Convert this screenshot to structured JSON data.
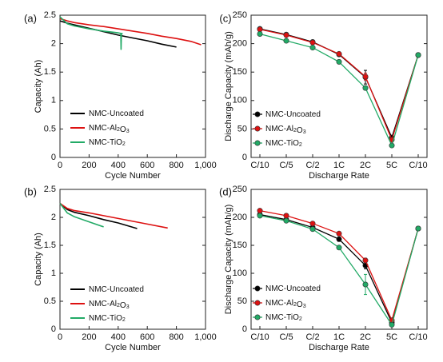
{
  "chart_data": [
    {
      "panel_label": "(a)",
      "type": "line",
      "xlabel": "Cycle Number",
      "ylabel": "Capacity (Ah)",
      "xlim": [
        0,
        1000
      ],
      "ylim": [
        0,
        2.5
      ],
      "x_ticks": [
        "0",
        "200",
        "400",
        "600",
        "800",
        "1,000"
      ],
      "x_tick_values": [
        0,
        200,
        400,
        600,
        800,
        1000
      ],
      "y_ticks": [
        "0",
        "0.5",
        "1",
        "1.5",
        "2",
        "2.5"
      ],
      "y_tick_values": [
        0,
        0.5,
        1,
        1.5,
        2,
        2.5
      ],
      "legend_position": "bottom-left",
      "series": [
        {
          "name": "NMC-Uncoated",
          "color": "#000000",
          "x": [
            0,
            50,
            100,
            200,
            300,
            400,
            500,
            600,
            700,
            800
          ],
          "y": [
            2.4,
            2.36,
            2.33,
            2.27,
            2.21,
            2.15,
            2.1,
            2.05,
            1.99,
            1.94
          ]
        },
        {
          "name": "NMC-Al₂O₃",
          "color": "#dd1111",
          "x": [
            0,
            50,
            100,
            200,
            300,
            400,
            500,
            600,
            700,
            800,
            900,
            970
          ],
          "y": [
            2.44,
            2.4,
            2.37,
            2.33,
            2.3,
            2.26,
            2.22,
            2.18,
            2.13,
            2.09,
            2.04,
            1.98
          ]
        },
        {
          "name": "NMC-TiO₂",
          "color": "#22aa66",
          "x": [
            0,
            50,
            100,
            200,
            300,
            400,
            418,
            420,
            422,
            424,
            430
          ],
          "y": [
            2.47,
            2.35,
            2.31,
            2.26,
            2.22,
            2.19,
            2.18,
            1.9,
            2.17,
            2.18,
            2.17
          ]
        }
      ]
    },
    {
      "panel_label": "(b)",
      "type": "line",
      "xlabel": "Cycle Number",
      "ylabel": "Capacity (Ah)",
      "xlim": [
        0,
        1000
      ],
      "ylim": [
        0,
        2.5
      ],
      "x_ticks": [
        "0",
        "200",
        "400",
        "600",
        "800",
        "1,000"
      ],
      "x_tick_values": [
        0,
        200,
        400,
        600,
        800,
        1000
      ],
      "y_ticks": [
        "0",
        "0.5",
        "1",
        "1.5",
        "2",
        "2.5"
      ],
      "y_tick_values": [
        0,
        0.5,
        1,
        1.5,
        2,
        2.5
      ],
      "legend_position": "bottom-left",
      "series": [
        {
          "name": "NMC-Uncoated",
          "color": "#000000",
          "x": [
            0,
            50,
            100,
            200,
            300,
            400,
            530
          ],
          "y": [
            2.25,
            2.14,
            2.09,
            2.03,
            1.96,
            1.9,
            1.8
          ]
        },
        {
          "name": "NMC-Al₂O₃",
          "color": "#dd1111",
          "x": [
            0,
            50,
            100,
            200,
            300,
            400,
            500,
            600,
            740
          ],
          "y": [
            2.25,
            2.16,
            2.12,
            2.08,
            2.03,
            1.98,
            1.93,
            1.88,
            1.81
          ]
        },
        {
          "name": "NMC-TiO₂",
          "color": "#22aa66",
          "x": [
            0,
            50,
            100,
            200,
            300
          ],
          "y": [
            2.25,
            2.08,
            2.01,
            1.92,
            1.83
          ]
        }
      ]
    },
    {
      "panel_label": "(c)",
      "type": "line",
      "xlabel": "Discharge Rate",
      "ylabel": "Discharge Capacity (mAh/g)",
      "categories": [
        "C/10",
        "C/5",
        "C/2",
        "1C",
        "2C",
        "5C",
        "C/10"
      ],
      "ylim": [
        0,
        250
      ],
      "y_ticks": [
        "0",
        "50",
        "100",
        "150",
        "200",
        "250"
      ],
      "y_tick_values": [
        0,
        50,
        100,
        150,
        200,
        250
      ],
      "legend_position": "middle-left",
      "series": [
        {
          "name": "NMC-Uncoated",
          "color": "#000000",
          "values": [
            226,
            216,
            203,
            181,
            141,
            35,
            180
          ],
          "error": [
            0,
            2,
            2,
            3,
            12,
            4,
            0
          ]
        },
        {
          "name": "NMC-Al₂O₃",
          "color": "#dd1111",
          "values": [
            225,
            215,
            202,
            182,
            142,
            31,
            180
          ],
          "error": [
            0,
            2,
            2,
            3,
            6,
            3,
            0
          ]
        },
        {
          "name": "NMC-TiO₂",
          "color": "#22aa66",
          "values": [
            217,
            205,
            193,
            168,
            122,
            21,
            180
          ],
          "error": [
            0,
            2,
            2,
            3,
            3,
            2,
            0
          ]
        }
      ]
    },
    {
      "panel_label": "(d)",
      "type": "line",
      "xlabel": "Discharge Rate",
      "ylabel": "Discharge Capacity (mAh/g)",
      "categories": [
        "C/10",
        "C/5",
        "C/2",
        "1C",
        "2C",
        "5C",
        "C/10"
      ],
      "ylim": [
        0,
        250
      ],
      "y_ticks": [
        "0",
        "50",
        "100",
        "150",
        "200",
        "250"
      ],
      "y_tick_values": [
        0,
        50,
        100,
        150,
        200,
        250
      ],
      "legend_position": "bottom-left",
      "series": [
        {
          "name": "NMC-Uncoated",
          "color": "#000000",
          "values": [
            205,
            196,
            182,
            161,
            114,
            12,
            180
          ],
          "error": [
            0,
            2,
            2,
            4,
            6,
            3,
            0
          ]
        },
        {
          "name": "NMC-Al₂O₃",
          "color": "#dd1111",
          "values": [
            212,
            203,
            189,
            171,
            123,
            16,
            180
          ],
          "error": [
            0,
            2,
            2,
            3,
            4,
            3,
            0
          ]
        },
        {
          "name": "NMC-TiO₂",
          "color": "#22aa66",
          "values": [
            203,
            194,
            179,
            146,
            80,
            8,
            180
          ],
          "error": [
            0,
            2,
            2,
            3,
            18,
            3,
            0
          ]
        }
      ]
    }
  ]
}
